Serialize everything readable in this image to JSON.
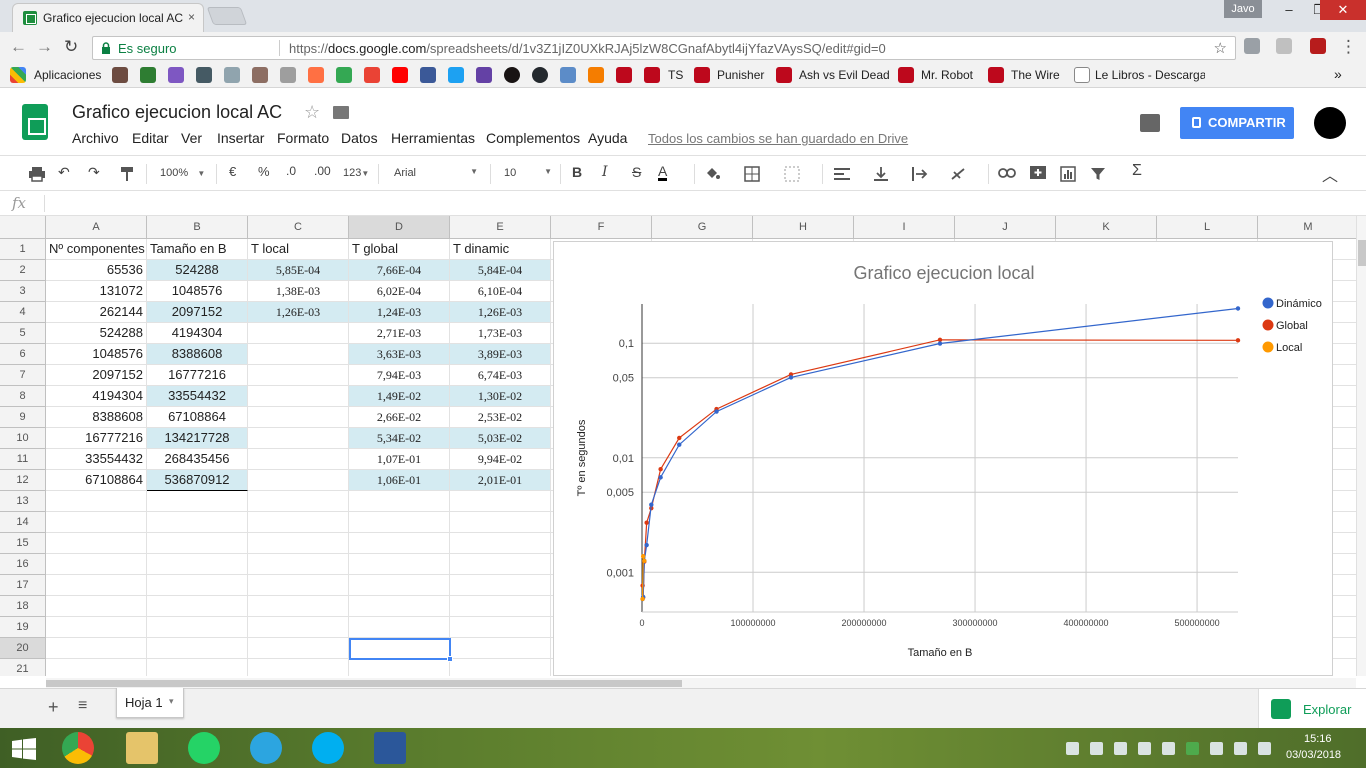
{
  "browser": {
    "tab_title": "Grafico ejecucion local AC",
    "tab_close": "×",
    "user_badge": "Javo",
    "win_min": "–",
    "win_max": "❐",
    "win_close": "✕",
    "back": "←",
    "forward": "→",
    "reload": "↻",
    "secure_label": "Es seguro",
    "url_scheme": "https://",
    "url_host": "docs.google.com",
    "url_path": "/spreadsheets/d/1v3Z1jIZ0UXkRJAj5lzW8CGnafAbytl4ijYfazVAysSQ/edit#gid=0",
    "star": "☆",
    "menu_dots": "⋮",
    "bookmarks_overflow": "»",
    "bookmarks": [
      {
        "label": "Aplicaciones"
      },
      {
        "label": "TS"
      },
      {
        "label": "Punisher"
      },
      {
        "label": "Ash vs Evil Dead"
      },
      {
        "label": "Mr. Robot"
      },
      {
        "label": "The Wire"
      },
      {
        "label": "Le Libros - Descargar"
      }
    ]
  },
  "sheets": {
    "title": "Grafico ejecucion local AC",
    "star": "☆",
    "menus": [
      "Archivo",
      "Editar",
      "Ver",
      "Insertar",
      "Formato",
      "Datos",
      "Herramientas",
      "Complementos",
      "Ayuda"
    ],
    "saved_message": "Todos los cambios se han guardado en Drive",
    "share_label": "COMPARTIR"
  },
  "toolbar": {
    "zoom": "100%",
    "currency": "€",
    "percent": "%",
    "dec_less": ".0",
    "dec_more": ".00",
    "more_formats": "123",
    "font": "Arial",
    "font_size": "10",
    "bold": "B",
    "italic": "I",
    "strike": "S",
    "text_color": "A",
    "sum": "Σ",
    "collapse": "︿"
  },
  "formula_bar": {
    "fx": "fx"
  },
  "grid": {
    "columns": [
      "A",
      "B",
      "C",
      "D",
      "E",
      "F",
      "G",
      "H",
      "I",
      "J",
      "K",
      "L",
      "M"
    ],
    "rows": [
      "1",
      "2",
      "3",
      "4",
      "5",
      "6",
      "7",
      "8",
      "9",
      "10",
      "11",
      "12",
      "13",
      "14",
      "15",
      "16",
      "17",
      "18",
      "19",
      "20",
      "21"
    ],
    "headers": [
      "Nº componentes",
      "Tamaño en B",
      "T local",
      "T global",
      "T dinamic"
    ],
    "data": [
      [
        "65536",
        "524288",
        "5,85E-04",
        "7,66E-04",
        "5,84E-04"
      ],
      [
        "131072",
        "1048576",
        "1,38E-03",
        "6,02E-04",
        "6,10E-04"
      ],
      [
        "262144",
        "2097152",
        "1,26E-03",
        "1,24E-03",
        "1,26E-03"
      ],
      [
        "524288",
        "4194304",
        "",
        "2,71E-03",
        "1,73E-03"
      ],
      [
        "1048576",
        "8388608",
        "",
        "3,63E-03",
        "3,89E-03"
      ],
      [
        "2097152",
        "16777216",
        "",
        "7,94E-03",
        "6,74E-03"
      ],
      [
        "4194304",
        "33554432",
        "",
        "1,49E-02",
        "1,30E-02"
      ],
      [
        "8388608",
        "67108864",
        "",
        "2,66E-02",
        "2,53E-02"
      ],
      [
        "16777216",
        "134217728",
        "",
        "5,34E-02",
        "5,03E-02"
      ],
      [
        "33554432",
        "268435456",
        "",
        "1,07E-01",
        "9,94E-02"
      ],
      [
        "67108864",
        "536870912",
        "",
        "1,06E-01",
        "2,01E-01"
      ]
    ]
  },
  "sheet_tabs": {
    "add": "+",
    "all": "≡",
    "active": "Hoja 1",
    "caret": "▾",
    "explore": "Explorar"
  },
  "taskbar": {
    "time": "15:16",
    "date": "03/03/2018"
  },
  "colors": {
    "dinamico": "#3366cc",
    "global": "#dc3912",
    "local": "#ff9900",
    "band": "#d4ebf2",
    "share": "#4285f4"
  },
  "chart_data": {
    "type": "line",
    "title": "Grafico ejecucion local",
    "xlabel": "Tamaño en B",
    "ylabel": "Tº en segundos",
    "y_scale": "log",
    "x_ticks": [
      "0",
      "100000000",
      "200000000",
      "300000000",
      "400000000",
      "500000000"
    ],
    "y_ticks": [
      "0,001",
      "0,005",
      "0,01",
      "0,05",
      "0,1"
    ],
    "legend_position": "right",
    "x": [
      524288,
      1048576,
      2097152,
      4194304,
      8388608,
      16777216,
      33554432,
      67108864,
      134217728,
      268435456,
      536870912
    ],
    "series": [
      {
        "name": "Dinámico",
        "color": "#3366cc",
        "values": [
          0.000584,
          0.00061,
          0.00126,
          0.00173,
          0.00389,
          0.00674,
          0.013,
          0.0253,
          0.0503,
          0.0994,
          0.201
        ]
      },
      {
        "name": "Global",
        "color": "#dc3912",
        "values": [
          0.000766,
          0.000602,
          0.00124,
          0.00271,
          0.00363,
          0.00794,
          0.0149,
          0.0266,
          0.0534,
          0.107,
          0.106
        ]
      },
      {
        "name": "Local",
        "color": "#ff9900",
        "values": [
          0.000585,
          0.00138,
          0.00126,
          null,
          null,
          null,
          null,
          null,
          null,
          null,
          null
        ]
      }
    ]
  }
}
